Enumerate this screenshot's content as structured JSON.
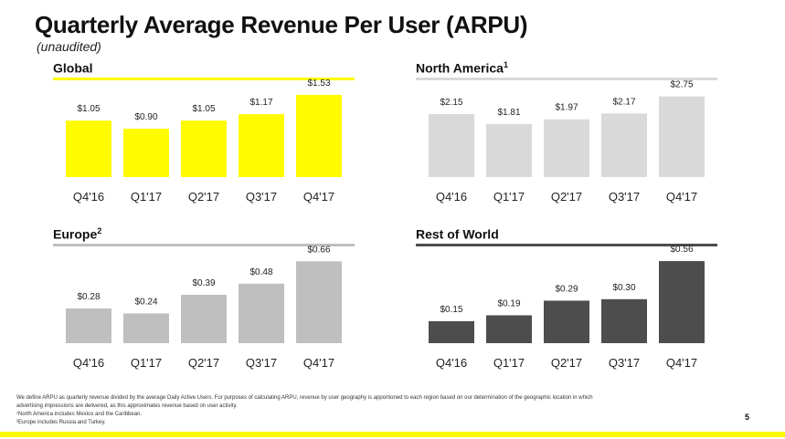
{
  "title": "Quarterly Average Revenue Per User (ARPU)",
  "subtitle": "(unaudited)",
  "colors": {
    "brand_yellow": "#FFFC00",
    "north_america_gray": "#D9D9D9",
    "europe_gray": "#BFBFBF",
    "row_dark": "#4D4D4D",
    "text": "#111111"
  },
  "chart_data": [
    {
      "type": "bar",
      "title": "Global",
      "title_superscript": "",
      "categories": [
        "Q4'16",
        "Q1'17",
        "Q2'17",
        "Q3'17",
        "Q4'17"
      ],
      "values": [
        1.05,
        0.9,
        1.05,
        1.17,
        1.53
      ],
      "value_labels": [
        "$1.05",
        "$0.90",
        "$1.05",
        "$1.17",
        "$1.53"
      ],
      "ylim": [
        0,
        1.8
      ],
      "color": "#FFFC00",
      "rule_color": "#FFFC00"
    },
    {
      "type": "bar",
      "title": "North America",
      "title_superscript": "1",
      "categories": [
        "Q4'16",
        "Q1'17",
        "Q2'17",
        "Q3'17",
        "Q4'17"
      ],
      "values": [
        2.15,
        1.81,
        1.97,
        2.17,
        2.75
      ],
      "value_labels": [
        "$2.15",
        "$1.81",
        "$1.97",
        "$2.17",
        "$2.75"
      ],
      "ylim": [
        0,
        3.3
      ],
      "color": "#D9D9D9",
      "rule_color": "#D9D9D9"
    },
    {
      "type": "bar",
      "title": "Europe",
      "title_superscript": "2",
      "categories": [
        "Q4'16",
        "Q1'17",
        "Q2'17",
        "Q3'17",
        "Q4'17"
      ],
      "values": [
        0.28,
        0.24,
        0.39,
        0.48,
        0.66
      ],
      "value_labels": [
        "$0.28",
        "$0.24",
        "$0.39",
        "$0.48",
        "$0.66"
      ],
      "ylim": [
        0,
        0.78
      ],
      "color": "#BFBFBF",
      "rule_color": "#BFBFBF"
    },
    {
      "type": "bar",
      "title": "Rest of World",
      "title_superscript": "",
      "categories": [
        "Q4'16",
        "Q1'17",
        "Q2'17",
        "Q3'17",
        "Q4'17"
      ],
      "values": [
        0.15,
        0.19,
        0.29,
        0.3,
        0.56
      ],
      "value_labels": [
        "$0.15",
        "$0.19",
        "$0.29",
        "$0.30",
        "$0.56"
      ],
      "ylim": [
        0,
        0.66
      ],
      "color": "#4D4D4D",
      "rule_color": "#4D4D4D"
    }
  ],
  "footnotes": {
    "definition": "We define ARPU as quarterly revenue divided by the average Daily Active Users. For purposes of calculating ARPU, revenue by user geography is apportioned to each region based on our determination of the geographic location in which",
    "definition_cont": "advertising impressions are delivered, as this approximates revenue based on user activity.",
    "note1": "¹North America includes Mexico and the Caribbean.",
    "note2": "²Europe includes Russia and Turkey."
  },
  "page_number": "5"
}
